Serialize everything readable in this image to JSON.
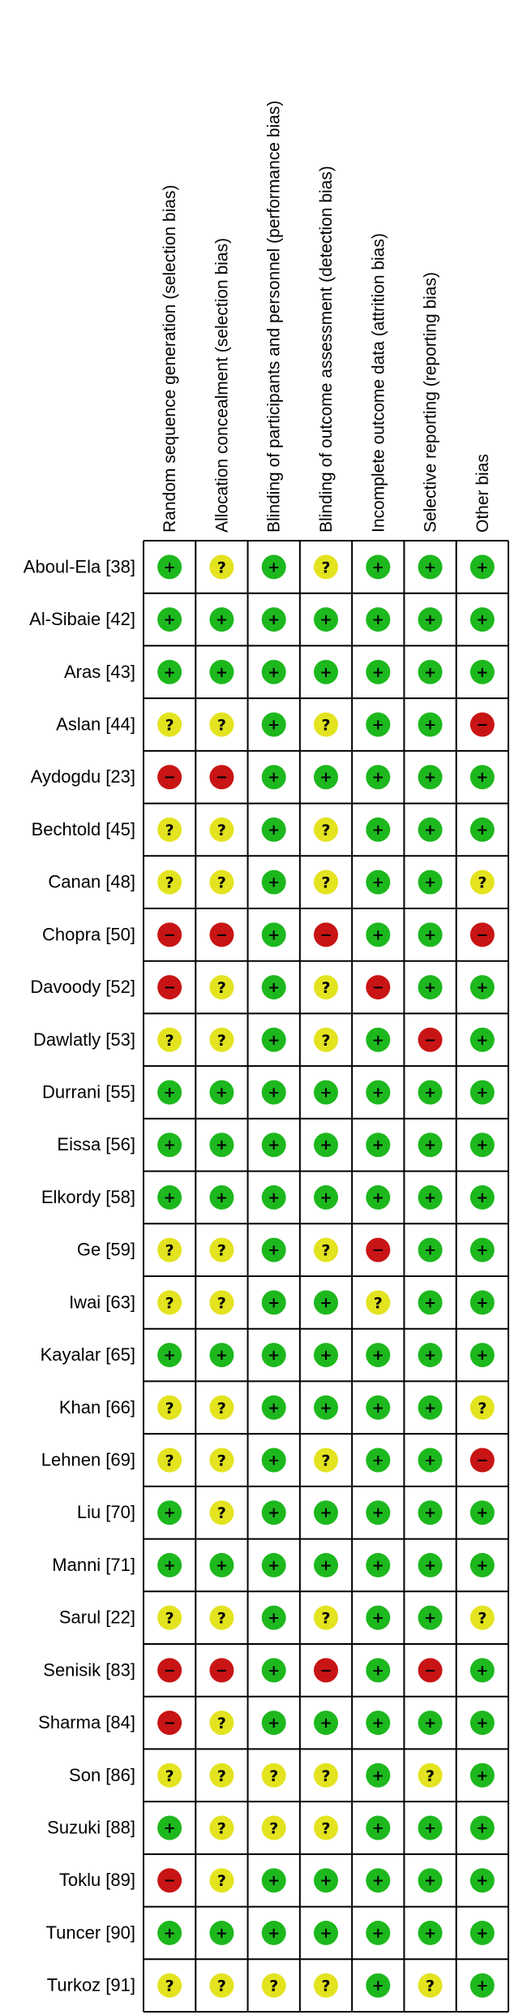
{
  "chart_data": {
    "type": "table",
    "columns": [
      "Random sequence generation (selection bias)",
      "Allocation concealment (selection bias)",
      "Blinding of participants and personnel (performance bias)",
      "Blinding of outcome assessment (detection bias)",
      "Incomplete outcome data (attrition bias)",
      "Selective reporting (reporting bias)",
      "Other bias"
    ],
    "legend": {
      "low": {
        "symbol": "+",
        "color": "#1db81d"
      },
      "unclear": {
        "symbol": "?",
        "color": "#e3e320"
      },
      "high": {
        "symbol": "−",
        "color": "#c81414"
      }
    },
    "rows": [
      {
        "study": "Aboul-Ela [38]",
        "ratings": [
          "low",
          "unclear",
          "low",
          "unclear",
          "low",
          "low",
          "low"
        ]
      },
      {
        "study": "Al-Sibaie [42]",
        "ratings": [
          "low",
          "low",
          "low",
          "low",
          "low",
          "low",
          "low"
        ]
      },
      {
        "study": "Aras [43]",
        "ratings": [
          "low",
          "low",
          "low",
          "low",
          "low",
          "low",
          "low"
        ]
      },
      {
        "study": "Aslan [44]",
        "ratings": [
          "unclear",
          "unclear",
          "low",
          "unclear",
          "low",
          "low",
          "high"
        ]
      },
      {
        "study": "Aydogdu [23]",
        "ratings": [
          "high",
          "high",
          "low",
          "low",
          "low",
          "low",
          "low"
        ]
      },
      {
        "study": "Bechtold [45]",
        "ratings": [
          "unclear",
          "unclear",
          "low",
          "unclear",
          "low",
          "low",
          "low"
        ]
      },
      {
        "study": "Canan [48]",
        "ratings": [
          "unclear",
          "unclear",
          "low",
          "unclear",
          "low",
          "low",
          "unclear"
        ]
      },
      {
        "study": "Chopra [50]",
        "ratings": [
          "high",
          "high",
          "low",
          "high",
          "low",
          "low",
          "high"
        ]
      },
      {
        "study": "Davoody [52]",
        "ratings": [
          "high",
          "unclear",
          "low",
          "unclear",
          "high",
          "low",
          "low"
        ]
      },
      {
        "study": "Dawlatly [53]",
        "ratings": [
          "unclear",
          "unclear",
          "low",
          "unclear",
          "low",
          "high",
          "low"
        ]
      },
      {
        "study": "Durrani [55]",
        "ratings": [
          "low",
          "low",
          "low",
          "low",
          "low",
          "low",
          "low"
        ]
      },
      {
        "study": "Eissa [56]",
        "ratings": [
          "low",
          "low",
          "low",
          "low",
          "low",
          "low",
          "low"
        ]
      },
      {
        "study": "Elkordy [58]",
        "ratings": [
          "low",
          "low",
          "low",
          "low",
          "low",
          "low",
          "low"
        ]
      },
      {
        "study": "Ge [59]",
        "ratings": [
          "unclear",
          "unclear",
          "low",
          "unclear",
          "high",
          "low",
          "low"
        ]
      },
      {
        "study": "Iwai [63]",
        "ratings": [
          "unclear",
          "unclear",
          "low",
          "low",
          "unclear",
          "low",
          "low"
        ]
      },
      {
        "study": "Kayalar [65]",
        "ratings": [
          "low",
          "low",
          "low",
          "low",
          "low",
          "low",
          "low"
        ]
      },
      {
        "study": "Khan [66]",
        "ratings": [
          "unclear",
          "unclear",
          "low",
          "low",
          "low",
          "low",
          "unclear"
        ]
      },
      {
        "study": "Lehnen [69]",
        "ratings": [
          "unclear",
          "unclear",
          "low",
          "unclear",
          "low",
          "low",
          "high"
        ]
      },
      {
        "study": "Liu [70]",
        "ratings": [
          "low",
          "unclear",
          "low",
          "low",
          "low",
          "low",
          "low"
        ]
      },
      {
        "study": "Manni [71]",
        "ratings": [
          "low",
          "low",
          "low",
          "low",
          "low",
          "low",
          "low"
        ]
      },
      {
        "study": "Sarul [22]",
        "ratings": [
          "unclear",
          "unclear",
          "low",
          "unclear",
          "low",
          "low",
          "unclear"
        ]
      },
      {
        "study": "Senisik [83]",
        "ratings": [
          "high",
          "high",
          "low",
          "high",
          "low",
          "high",
          "low"
        ]
      },
      {
        "study": "Sharma [84]",
        "ratings": [
          "high",
          "unclear",
          "low",
          "low",
          "low",
          "low",
          "low"
        ]
      },
      {
        "study": "Son [86]",
        "ratings": [
          "unclear",
          "unclear",
          "unclear",
          "unclear",
          "low",
          "unclear",
          "low"
        ]
      },
      {
        "study": "Suzuki [88]",
        "ratings": [
          "low",
          "unclear",
          "unclear",
          "unclear",
          "low",
          "low",
          "low"
        ]
      },
      {
        "study": "Toklu [89]",
        "ratings": [
          "high",
          "unclear",
          "low",
          "low",
          "low",
          "low",
          "low"
        ]
      },
      {
        "study": "Tuncer [90]",
        "ratings": [
          "low",
          "low",
          "low",
          "low",
          "low",
          "low",
          "low"
        ]
      },
      {
        "study": "Turkoz [91]",
        "ratings": [
          "unclear",
          "unclear",
          "unclear",
          "unclear",
          "low",
          "unclear",
          "low"
        ]
      }
    ]
  }
}
